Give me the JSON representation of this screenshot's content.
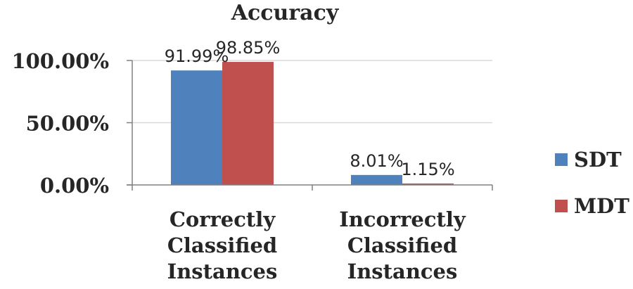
{
  "chart_data": {
    "type": "bar",
    "title": "Accuracy",
    "categories": [
      [
        "Correctly",
        "Classified",
        "Instances"
      ],
      [
        "Incorrectly",
        "Classified",
        "Instances"
      ]
    ],
    "series": [
      {
        "name": "SDT",
        "color": "#4f81bd",
        "values": [
          91.99,
          8.01
        ],
        "labels": [
          "91.99%",
          "8.01%"
        ]
      },
      {
        "name": "MDT",
        "color": "#c0504d",
        "values": [
          98.85,
          1.15
        ],
        "labels": [
          "98.85%",
          "1.15%"
        ]
      }
    ],
    "yticks": [
      {
        "value": 0,
        "label": "0.00%"
      },
      {
        "value": 50,
        "label": "50.00%"
      },
      {
        "value": 100,
        "label": "100.00%"
      }
    ],
    "ylim": [
      0,
      100
    ],
    "grid": true,
    "legend": "right"
  }
}
